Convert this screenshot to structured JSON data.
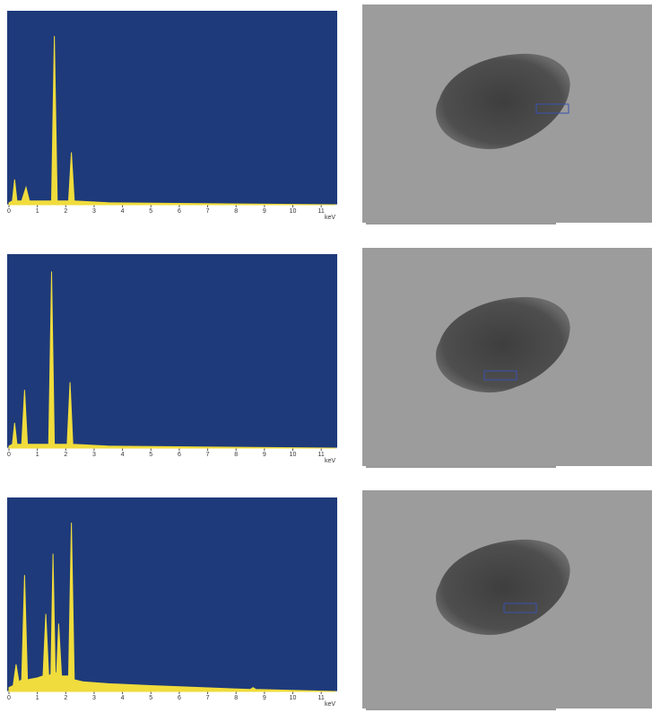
{
  "chart_data": [
    {
      "type": "area",
      "color": "#f0dc3c",
      "x_label": "keV",
      "x": [
        0,
        0.12,
        0.2,
        0.28,
        0.45,
        0.6,
        0.72,
        1.5,
        1.6,
        1.7,
        2.1,
        2.2,
        2.3,
        3.5,
        11.5
      ],
      "values": [
        1,
        2,
        13,
        2,
        2,
        9,
        2,
        2,
        87,
        2,
        2,
        27,
        2,
        1,
        0
      ],
      "xlim": [
        0,
        11.5
      ],
      "xticks": [
        0,
        1,
        2,
        3,
        4,
        5,
        6,
        7,
        8,
        9,
        10,
        11
      ],
      "ylim": [
        0,
        100
      ]
    },
    {
      "type": "area",
      "color": "#f0dc3c",
      "x_label": "keV",
      "x": [
        0,
        0.12,
        0.2,
        0.28,
        0.45,
        0.55,
        0.65,
        1.4,
        1.5,
        1.6,
        2.05,
        2.15,
        2.25,
        3.5,
        11.5
      ],
      "values": [
        1,
        2,
        13,
        2,
        2,
        30,
        2,
        2,
        91,
        2,
        2,
        34,
        2,
        1,
        0
      ],
      "xlim": [
        0,
        11.5
      ],
      "xticks": [
        0,
        1,
        2,
        3,
        4,
        5,
        6,
        7,
        8,
        9,
        10,
        11
      ],
      "ylim": [
        0,
        100
      ]
    },
    {
      "type": "area",
      "color": "#f0dc3c",
      "x_label": "keV",
      "x": [
        0,
        0.15,
        0.25,
        0.35,
        0.45,
        0.55,
        0.65,
        1.0,
        1.2,
        1.3,
        1.4,
        1.48,
        1.55,
        1.63,
        1.68,
        1.75,
        1.85,
        2.1,
        2.2,
        2.3,
        2.6,
        3.5,
        5,
        8.5,
        8.6,
        8.7,
        11.5
      ],
      "values": [
        2,
        3,
        14,
        5,
        6,
        60,
        6,
        7,
        8,
        40,
        8,
        9,
        71,
        9,
        10,
        35,
        8,
        8,
        87,
        6,
        5,
        4,
        3,
        1,
        2,
        1,
        0
      ],
      "xlim": [
        0,
        11.5
      ],
      "xticks": [
        0,
        1,
        2,
        3,
        4,
        5,
        6,
        7,
        8,
        9,
        10,
        11
      ],
      "ylim": [
        0,
        100
      ]
    }
  ]
}
